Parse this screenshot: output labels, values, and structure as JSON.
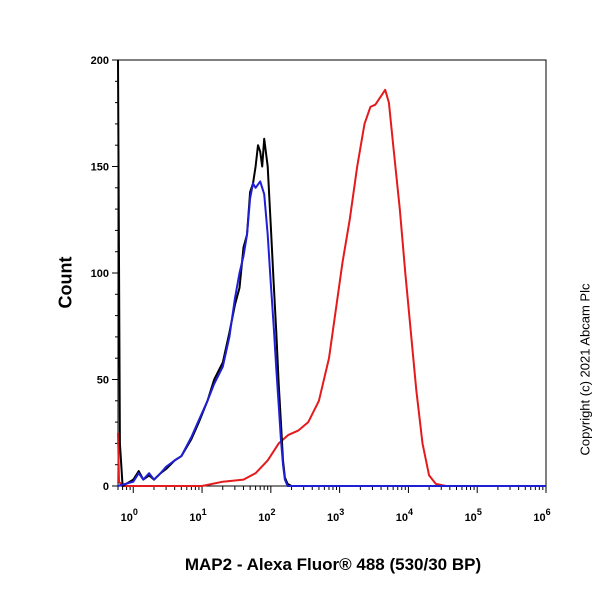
{
  "chart_data": {
    "type": "line",
    "title": "",
    "xlabel": "MAP2 - Alexa Fluor® 488 (530/30 BP)",
    "ylabel": "Count",
    "x_scale": "log",
    "xlim": [
      0.6,
      1000000
    ],
    "ylim": [
      0,
      200
    ],
    "y_ticks": [
      0,
      50,
      100,
      150,
      200
    ],
    "x_ticks": [
      {
        "value": 1,
        "base": "10",
        "exp": "0"
      },
      {
        "value": 10,
        "base": "10",
        "exp": "1"
      },
      {
        "value": 100,
        "base": "10",
        "exp": "2"
      },
      {
        "value": 1000,
        "base": "10",
        "exp": "3"
      },
      {
        "value": 10000,
        "base": "10",
        "exp": "4"
      },
      {
        "value": 100000,
        "base": "10",
        "exp": "5"
      },
      {
        "value": 1000000,
        "base": "10",
        "exp": "6"
      }
    ],
    "series": [
      {
        "name": "red",
        "color": "#e41a1c",
        "points": [
          [
            0.6,
            25
          ],
          [
            0.62,
            2
          ],
          [
            0.7,
            0
          ],
          [
            10,
            0
          ],
          [
            20,
            2
          ],
          [
            40,
            3
          ],
          [
            60,
            6
          ],
          [
            90,
            12
          ],
          [
            130,
            20
          ],
          [
            180,
            24
          ],
          [
            250,
            26
          ],
          [
            350,
            30
          ],
          [
            500,
            40
          ],
          [
            700,
            60
          ],
          [
            900,
            85
          ],
          [
            1100,
            105
          ],
          [
            1400,
            125
          ],
          [
            1800,
            150
          ],
          [
            2300,
            170
          ],
          [
            2800,
            178
          ],
          [
            3300,
            179
          ],
          [
            4000,
            183
          ],
          [
            4600,
            186
          ],
          [
            5200,
            180
          ],
          [
            6000,
            160
          ],
          [
            7500,
            130
          ],
          [
            9000,
            100
          ],
          [
            11000,
            70
          ],
          [
            13000,
            45
          ],
          [
            16000,
            20
          ],
          [
            20000,
            5
          ],
          [
            25000,
            1
          ],
          [
            35000,
            0
          ],
          [
            1000000,
            0
          ]
        ]
      },
      {
        "name": "black",
        "color": "#000000",
        "points": [
          [
            0.6,
            200
          ],
          [
            0.64,
            20
          ],
          [
            0.7,
            0
          ],
          [
            1.0,
            3
          ],
          [
            1.2,
            7
          ],
          [
            1.4,
            3
          ],
          [
            1.7,
            5
          ],
          [
            2.0,
            3
          ],
          [
            2.5,
            6
          ],
          [
            3,
            8
          ],
          [
            4,
            12
          ],
          [
            5,
            14
          ],
          [
            7,
            22
          ],
          [
            9,
            30
          ],
          [
            12,
            40
          ],
          [
            15,
            50
          ],
          [
            20,
            58
          ],
          [
            25,
            72
          ],
          [
            30,
            85
          ],
          [
            35,
            93
          ],
          [
            40,
            112
          ],
          [
            45,
            118
          ],
          [
            50,
            138
          ],
          [
            55,
            142
          ],
          [
            60,
            150
          ],
          [
            65,
            160
          ],
          [
            70,
            157
          ],
          [
            75,
            150
          ],
          [
            80,
            163
          ],
          [
            90,
            150
          ],
          [
            100,
            122
          ],
          [
            110,
            95
          ],
          [
            120,
            72
          ],
          [
            130,
            48
          ],
          [
            140,
            30
          ],
          [
            150,
            12
          ],
          [
            160,
            4
          ],
          [
            175,
            1
          ],
          [
            200,
            0
          ],
          [
            1000000,
            0
          ]
        ]
      },
      {
        "name": "blue",
        "color": "#1f1fd6",
        "points": [
          [
            0.6,
            0
          ],
          [
            1.0,
            2
          ],
          [
            1.2,
            6
          ],
          [
            1.4,
            3
          ],
          [
            1.7,
            6
          ],
          [
            2.0,
            3
          ],
          [
            2.5,
            6
          ],
          [
            3,
            9
          ],
          [
            4,
            12
          ],
          [
            5,
            14
          ],
          [
            7,
            23
          ],
          [
            9,
            31
          ],
          [
            12,
            40
          ],
          [
            15,
            48
          ],
          [
            20,
            56
          ],
          [
            25,
            70
          ],
          [
            30,
            88
          ],
          [
            35,
            100
          ],
          [
            40,
            108
          ],
          [
            45,
            118
          ],
          [
            50,
            135
          ],
          [
            55,
            142
          ],
          [
            60,
            140
          ],
          [
            70,
            143
          ],
          [
            80,
            137
          ],
          [
            90,
            118
          ],
          [
            100,
            95
          ],
          [
            110,
            75
          ],
          [
            120,
            55
          ],
          [
            130,
            38
          ],
          [
            140,
            22
          ],
          [
            150,
            10
          ],
          [
            160,
            3
          ],
          [
            175,
            0
          ],
          [
            1000000,
            0
          ]
        ]
      }
    ]
  },
  "copyright": "Copyright (c) 2021 Abcam Plc"
}
